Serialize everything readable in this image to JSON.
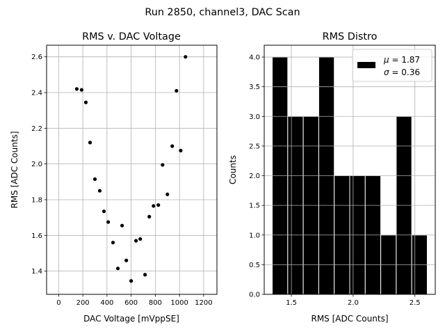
{
  "figure": {
    "title": "Run 2850, channel3, DAC Scan"
  },
  "chart_data": [
    {
      "type": "scatter",
      "title": "RMS v. DAC Voltage",
      "xlabel": "DAC Voltage [mVppSE]",
      "ylabel": "RMS [ADC Counts]",
      "xlim": [
        -100,
        1310
      ],
      "ylim": [
        1.27,
        2.665
      ],
      "xticks": [
        0,
        200,
        400,
        600,
        800,
        1000,
        1200
      ],
      "yticks": [
        1.4,
        1.6,
        1.8,
        2.0,
        2.2,
        2.4,
        2.6
      ],
      "grid": true,
      "marker_color": "#000000",
      "points": [
        {
          "x": 150,
          "y": 2.42
        },
        {
          "x": 190,
          "y": 2.415
        },
        {
          "x": 225,
          "y": 2.345
        },
        {
          "x": 260,
          "y": 2.12
        },
        {
          "x": 300,
          "y": 1.915
        },
        {
          "x": 340,
          "y": 1.85
        },
        {
          "x": 375,
          "y": 1.735
        },
        {
          "x": 410,
          "y": 1.675
        },
        {
          "x": 450,
          "y": 1.56
        },
        {
          "x": 490,
          "y": 1.415
        },
        {
          "x": 525,
          "y": 1.655
        },
        {
          "x": 560,
          "y": 1.46
        },
        {
          "x": 600,
          "y": 1.345
        },
        {
          "x": 640,
          "y": 1.57
        },
        {
          "x": 675,
          "y": 1.58
        },
        {
          "x": 715,
          "y": 1.38
        },
        {
          "x": 750,
          "y": 1.705
        },
        {
          "x": 785,
          "y": 1.765
        },
        {
          "x": 825,
          "y": 1.77
        },
        {
          "x": 860,
          "y": 1.995
        },
        {
          "x": 900,
          "y": 1.83
        },
        {
          "x": 940,
          "y": 2.1
        },
        {
          "x": 975,
          "y": 2.41
        },
        {
          "x": 1010,
          "y": 2.075
        },
        {
          "x": 1050,
          "y": 2.6
        }
      ]
    },
    {
      "type": "bar",
      "subtype": "histogram",
      "title": "RMS Distro",
      "xlabel": "RMS [ADC Counts]",
      "ylabel": "Counts",
      "xlim": [
        1.28,
        2.665
      ],
      "ylim": [
        0,
        4.2
      ],
      "xticks": [
        1.5,
        2.0,
        2.5
      ],
      "xtick_labels": [
        "1.5",
        "2.0",
        "2.5"
      ],
      "yticks": [
        0.0,
        0.5,
        1.0,
        1.5,
        2.0,
        2.5,
        3.0,
        3.5,
        4.0
      ],
      "ytick_labels": [
        "0.0",
        "0.5",
        "1.0",
        "1.5",
        "2.0",
        "2.5",
        "3.0",
        "3.5",
        "4.0"
      ],
      "grid": true,
      "bar_color": "#000000",
      "bin_edges": [
        1.345,
        1.4705,
        1.596,
        1.7215,
        1.847,
        1.9725,
        2.098,
        2.2235,
        2.349,
        2.4745,
        2.6
      ],
      "counts": [
        4,
        3,
        3,
        4,
        2,
        2,
        2,
        1,
        3,
        1
      ],
      "legend": {
        "placement": "top-right",
        "entries": [
          "$\\mu$ = 1.87",
          "$\\sigma$ = 0.36"
        ],
        "display": [
          {
            "symbol": "μ",
            "rest": " = 1.87"
          },
          {
            "symbol": "σ",
            "rest": " = 0.36"
          }
        ]
      }
    }
  ]
}
